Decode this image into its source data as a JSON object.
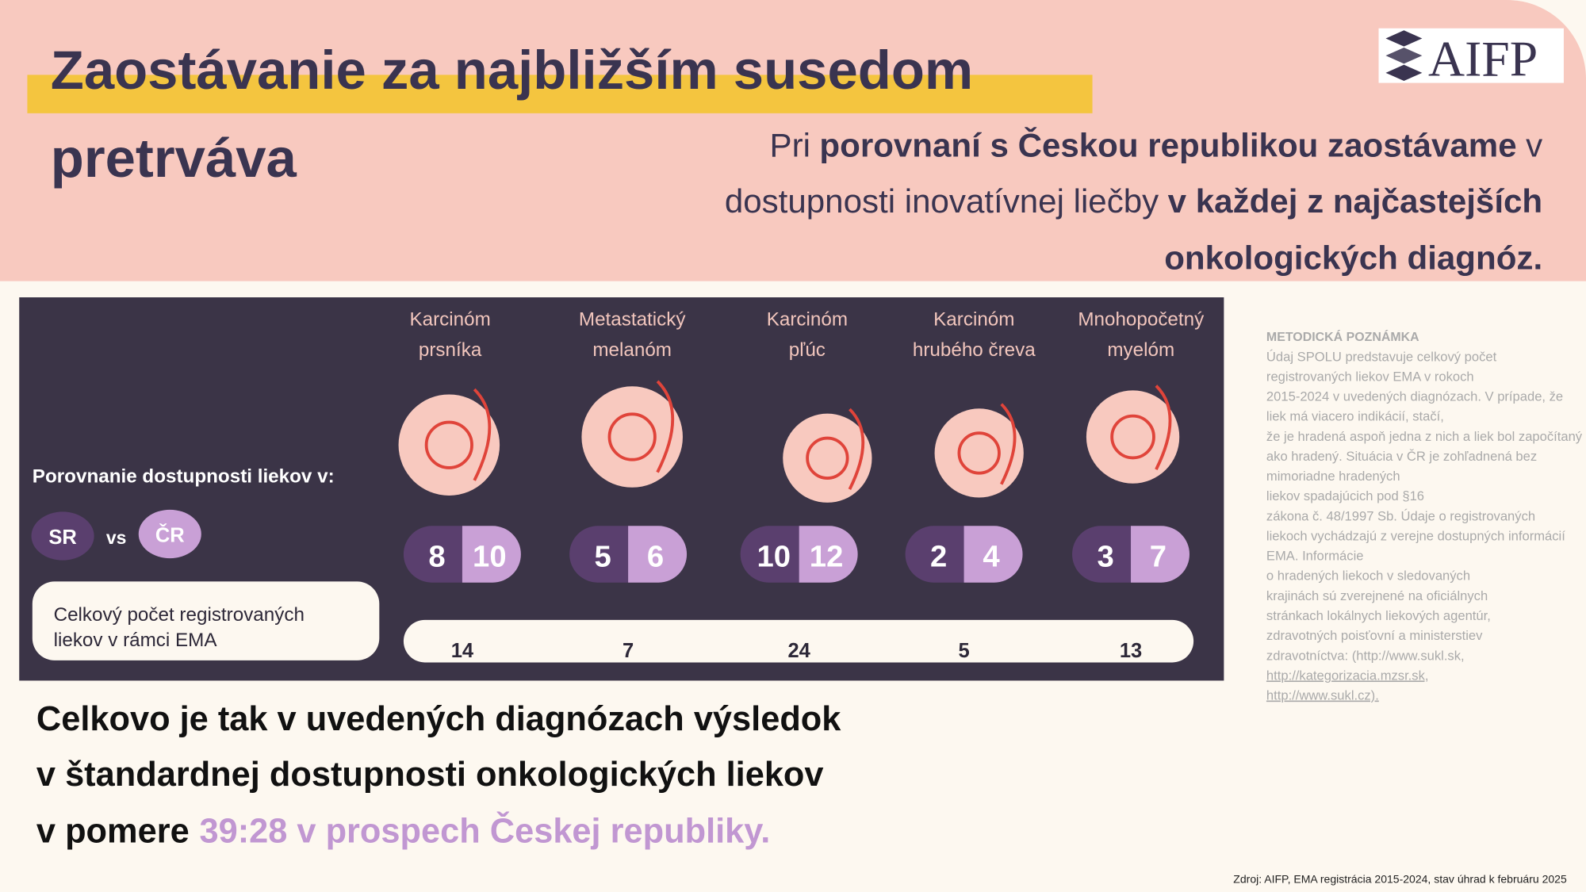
{
  "header": {
    "title_lines": [
      "Zaostávanie za najbližším susedom",
      "pretrváva"
    ],
    "subtitle_lines": [
      [
        {
          "text": "Pri",
          "bold": false
        },
        {
          "text": "porovnaní s Českou republikou zaostávame",
          "bold": true
        },
        {
          "text": "v",
          "bold": false
        }
      ],
      [
        {
          "text": "dostupnosti inovatívnej liečby",
          "bold": false
        },
        {
          "text": "v každej z najčastejších",
          "bold": true
        }
      ],
      [
        {
          "text": "onkologických diagnóz.",
          "bold": true
        }
      ]
    ],
    "logo": "AIFP"
  },
  "panel": {
    "legend_title": "Porovnanie dostupnosti liekov v:",
    "sr": "SR",
    "vs": "vs",
    "cr": "ČR",
    "ema_label_lines": [
      "Celkový počet registrovaných",
      "liekov v rámci EMA"
    ],
    "diagnoses": [
      {
        "name_lines": [
          "Karcinóm",
          "prsníka"
        ],
        "sr": 8,
        "cr": 10,
        "ema": 14
      },
      {
        "name_lines": [
          "Metastatický",
          "melanóm"
        ],
        "sr": 5,
        "cr": 6,
        "ema": 7
      },
      {
        "name_lines": [
          "Karcinóm",
          "pľúc"
        ],
        "sr": 10,
        "cr": 12,
        "ema": 24
      },
      {
        "name_lines": [
          "Karcinóm",
          "hrubého čreva"
        ],
        "sr": 2,
        "cr": 4,
        "ema": 5
      },
      {
        "name_lines": [
          "Mnohopočetný",
          "myelóm"
        ],
        "sr": 3,
        "cr": 7,
        "ema": 13
      }
    ]
  },
  "conclusion": {
    "lines": [
      [
        {
          "text": "Celkovo je tak v uvedených diagnózach výsledok",
          "highlight": false
        }
      ],
      [
        {
          "text": "v štandardnej dostupnosti onkologických liekov",
          "highlight": false
        }
      ],
      [
        {
          "text": "v pomere",
          "highlight": false
        },
        {
          "text": "39:28 v prospech Českej republiky.",
          "highlight": true
        }
      ]
    ]
  },
  "note": {
    "title": "METODICKÁ  POZNÁMKA",
    "lines": [
      "Údaj SPOLU predstavuje celkový počet",
      "registrovaných liekov EMA v rokoch",
      "2015-2024 v uvedených diagnózach. V prípade, že",
      "liek má viacero indikácií, stačí,",
      "že je hradená aspoň jedna z nich a liek bol započítaný",
      "ako hradený.  Situácia v ČR je zohľadnená bez",
      "mimoriadne hradených",
      "liekov spadajúcich pod §16",
      "zákona č. 48/1997 Sb. Údaje o registrovaných",
      "liekoch vychádzajú z verejne dostupných informácií",
      "EMA. Informácie",
      "o hradených liekoch v sledovaných",
      "krajinách sú zverejnené na oficiálnych",
      "stránkach lokálnych liekových agentúr,",
      "zdravotných poisťovní a ministerstiev",
      "zdravotníctva: (http://www.sukl.sk,",
      "http://kategorizacia.mzsr.sk,",
      "http://www.sukl.cz)."
    ]
  },
  "source": "Zdroj: AIFP, EMA registrácia 2015-2024, stav úhrad k februáru 2025"
}
